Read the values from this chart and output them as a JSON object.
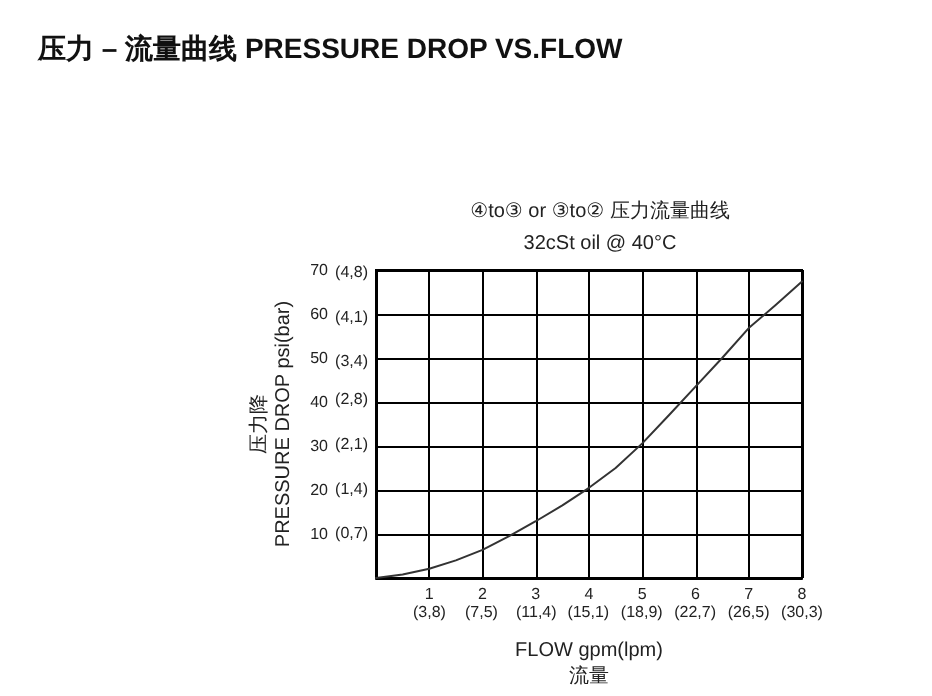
{
  "chart_data": {
    "type": "line",
    "title": "压力 – 流量曲线 PRESSURE DROP VS.FLOW",
    "subtitle": "④to③ or ③to② 压力流量曲线",
    "annotations": [
      "32cSt oil @ 40°C"
    ],
    "xlabel": "FLOW gpm(lpm)\n流量",
    "ylabel": "压力降\nPRESSURE DROP psi(bar)",
    "x": [
      0,
      0.5,
      1,
      1.5,
      2,
      2.5,
      3,
      3.5,
      4,
      4.5,
      5,
      5.5,
      6,
      6.5,
      7,
      7.5,
      8
    ],
    "series": [
      {
        "color": "#333333",
        "values": [
          0,
          0.8,
          2.1,
          4,
          6.4,
          9.5,
          12.9,
          16.5,
          20.5,
          25,
          30.6,
          37,
          43.5,
          50,
          56.8,
          62,
          67.4
        ]
      }
    ],
    "xlim": [
      0,
      8
    ],
    "xticks": [
      1,
      2,
      3,
      4,
      5,
      6,
      7,
      8
    ],
    "x2lim": [
      0,
      30.3
    ],
    "x2ticks": [
      {
        "value": 3.8,
        "label": "(3,8)"
      },
      {
        "value": 7.5,
        "label": "(7,5)"
      },
      {
        "value": 11.4,
        "label": "(11,4)"
      },
      {
        "value": 15.1,
        "label": "(15,1)"
      },
      {
        "value": 18.9,
        "label": "(18,9)"
      },
      {
        "value": 22.7,
        "label": "(22,7)"
      },
      {
        "value": 26.5,
        "label": "(26,5)"
      },
      {
        "value": 30.3,
        "label": "(30,3)"
      }
    ],
    "ylim": [
      0,
      70
    ],
    "yticks": [
      10,
      20,
      30,
      40,
      50,
      60,
      70
    ],
    "y2lim": [
      0,
      4.83
    ],
    "y2ticks": [
      {
        "value": 0.7,
        "label": "(0,7)"
      },
      {
        "value": 1.4,
        "label": "(1,4)"
      },
      {
        "value": 2.1,
        "label": "(2,1)"
      },
      {
        "value": 2.8,
        "label": "(2,8)"
      },
      {
        "value": 3.4,
        "label": "(3,4)"
      },
      {
        "value": 4.1,
        "label": "(4,1)"
      },
      {
        "value": 4.8,
        "label": "(4,8)"
      }
    ],
    "grid": true,
    "marker": "none",
    "line_style": "solid"
  }
}
